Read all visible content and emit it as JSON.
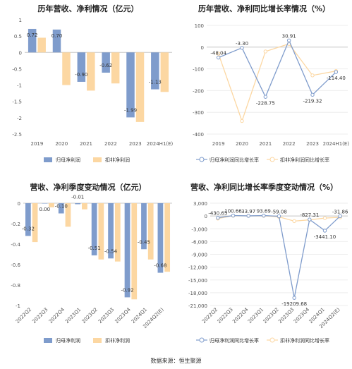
{
  "colors": {
    "series_a": "#7f9ccc",
    "series_b": "#fcd7a2",
    "zero_line": "#c8c8c8",
    "grid": "#eeeeee",
    "tick_text": "#555555",
    "label_text": "#333333"
  },
  "source": "数据来源：恒生聚源",
  "chart_data": [
    {
      "type": "bar",
      "title": "历年营收、净利情况（亿元）",
      "categories": [
        "2019",
        "2020",
        "2021",
        "2022",
        "2023",
        "2024H1(E)"
      ],
      "ylim": [
        -2.5,
        1
      ],
      "yticks": [
        1,
        0.5,
        0,
        -0.5,
        -1,
        -1.5,
        -2,
        -2.5
      ],
      "ytick_labels": [
        "1",
        "0.5",
        "0",
        "-0.5",
        "-1",
        "-1.5",
        "-2",
        "-2.5"
      ],
      "series": [
        {
          "name": "归母净利润",
          "values": [
            0.72,
            0.7,
            -0.9,
            -0.62,
            -1.99,
            -1.13
          ],
          "labels": [
            "0.72",
            "0.70",
            "-0.90",
            "-0.62",
            "-1.99",
            "-1.13"
          ]
        },
        {
          "name": "扣非净利润",
          "values": [
            0.45,
            -1.0,
            -1.17,
            -0.95,
            -2.13,
            -1.21
          ]
        }
      ],
      "grid": false,
      "legend": "bottom"
    },
    {
      "type": "line",
      "title": "历年营收、净利同比增长率情况（%）",
      "categories": [
        "2019",
        "2020",
        "2021",
        "2022",
        "2023",
        "2024H1(E)"
      ],
      "ylim": [
        -400,
        100
      ],
      "yticks": [
        100,
        0,
        -100,
        -200,
        -300,
        -400
      ],
      "ytick_labels": [
        "100",
        "0",
        "-100",
        "-200",
        "-300",
        "-400"
      ],
      "series": [
        {
          "name": "归母净利润同比增长率",
          "values": [
            -48.04,
            -3.3,
            -228.75,
            30.91,
            -219.32,
            -114.4
          ],
          "labels": [
            "-48.04",
            "-3.30",
            "-228.75",
            "30.91",
            "-219.32",
            "-114.40"
          ]
        },
        {
          "name": "扣非净利润同比增长率",
          "values": [
            -30,
            -340,
            -20,
            15,
            -130,
            -110
          ]
        }
      ],
      "grid": true,
      "legend": "bottom"
    },
    {
      "type": "bar",
      "title": "营收、净利季度变动情况（亿元）",
      "categories": [
        "2022Q2",
        "2022Q3",
        "2022Q4",
        "2023Q1",
        "2023Q2",
        "2023Q3",
        "2023Q4",
        "2024Q1",
        "2024Q2(E)"
      ],
      "ylim": [
        -1,
        0
      ],
      "yticks": [
        0,
        -0.2,
        -0.4,
        -0.6,
        -0.8,
        -1
      ],
      "ytick_labels": [
        "0",
        "-0.2",
        "-0.4",
        "-0.6",
        "-0.8",
        "-1"
      ],
      "series": [
        {
          "name": "归母净利润",
          "values": [
            -0.32,
            0.0,
            -0.1,
            -0.01,
            -0.51,
            -0.54,
            -0.92,
            -0.45,
            -0.68
          ],
          "labels": [
            "-0.32",
            "0.00",
            "-0.10",
            "-0.01",
            "-0.51",
            "-0.54",
            "-0.92",
            "-0.45",
            "-0.68"
          ]
        },
        {
          "name": "扣非净利润",
          "values": [
            -0.38,
            -0.04,
            -0.23,
            -0.06,
            -0.55,
            -0.57,
            -0.94,
            -0.55,
            -0.67
          ]
        }
      ],
      "grid": false,
      "legend": "bottom"
    },
    {
      "type": "line",
      "title": "营收、净利同比增长率季度变动情况（%）",
      "categories": [
        "2022Q2",
        "2022Q3",
        "2022Q4",
        "2023Q1",
        "2023Q2",
        "2023Q3",
        "2023Q4",
        "2024Q1",
        "2024Q2(E)"
      ],
      "ylim": [
        -21000,
        3000
      ],
      "yticks": [
        3000,
        0,
        -3000,
        -6000,
        -9000,
        -12000,
        -15000,
        -18000,
        -21000
      ],
      "ytick_labels": [
        "3,000",
        "0",
        "-3,000",
        "-6,000",
        "-9,000",
        "-12,000",
        "-15,000",
        "-18,000",
        "-21,000"
      ],
      "series": [
        {
          "name": "归母净利润同比增长率",
          "values": [
            -430.65,
            100.66,
            33.97,
            93.69,
            -59.08,
            -19209.68,
            -827.31,
            -3441.1,
            -31.86
          ],
          "labels": [
            "-430.65",
            "100.66",
            "33.97",
            "93.69",
            "-59.08",
            "-19209.68",
            "-827.31",
            "-3441.10",
            "-31.86"
          ]
        },
        {
          "name": "扣非净利润同比增长率",
          "values": [
            -600,
            60,
            20,
            40,
            -200,
            -1200,
            -900,
            -500,
            -300
          ]
        }
      ],
      "grid": true,
      "legend": "bottom"
    }
  ]
}
